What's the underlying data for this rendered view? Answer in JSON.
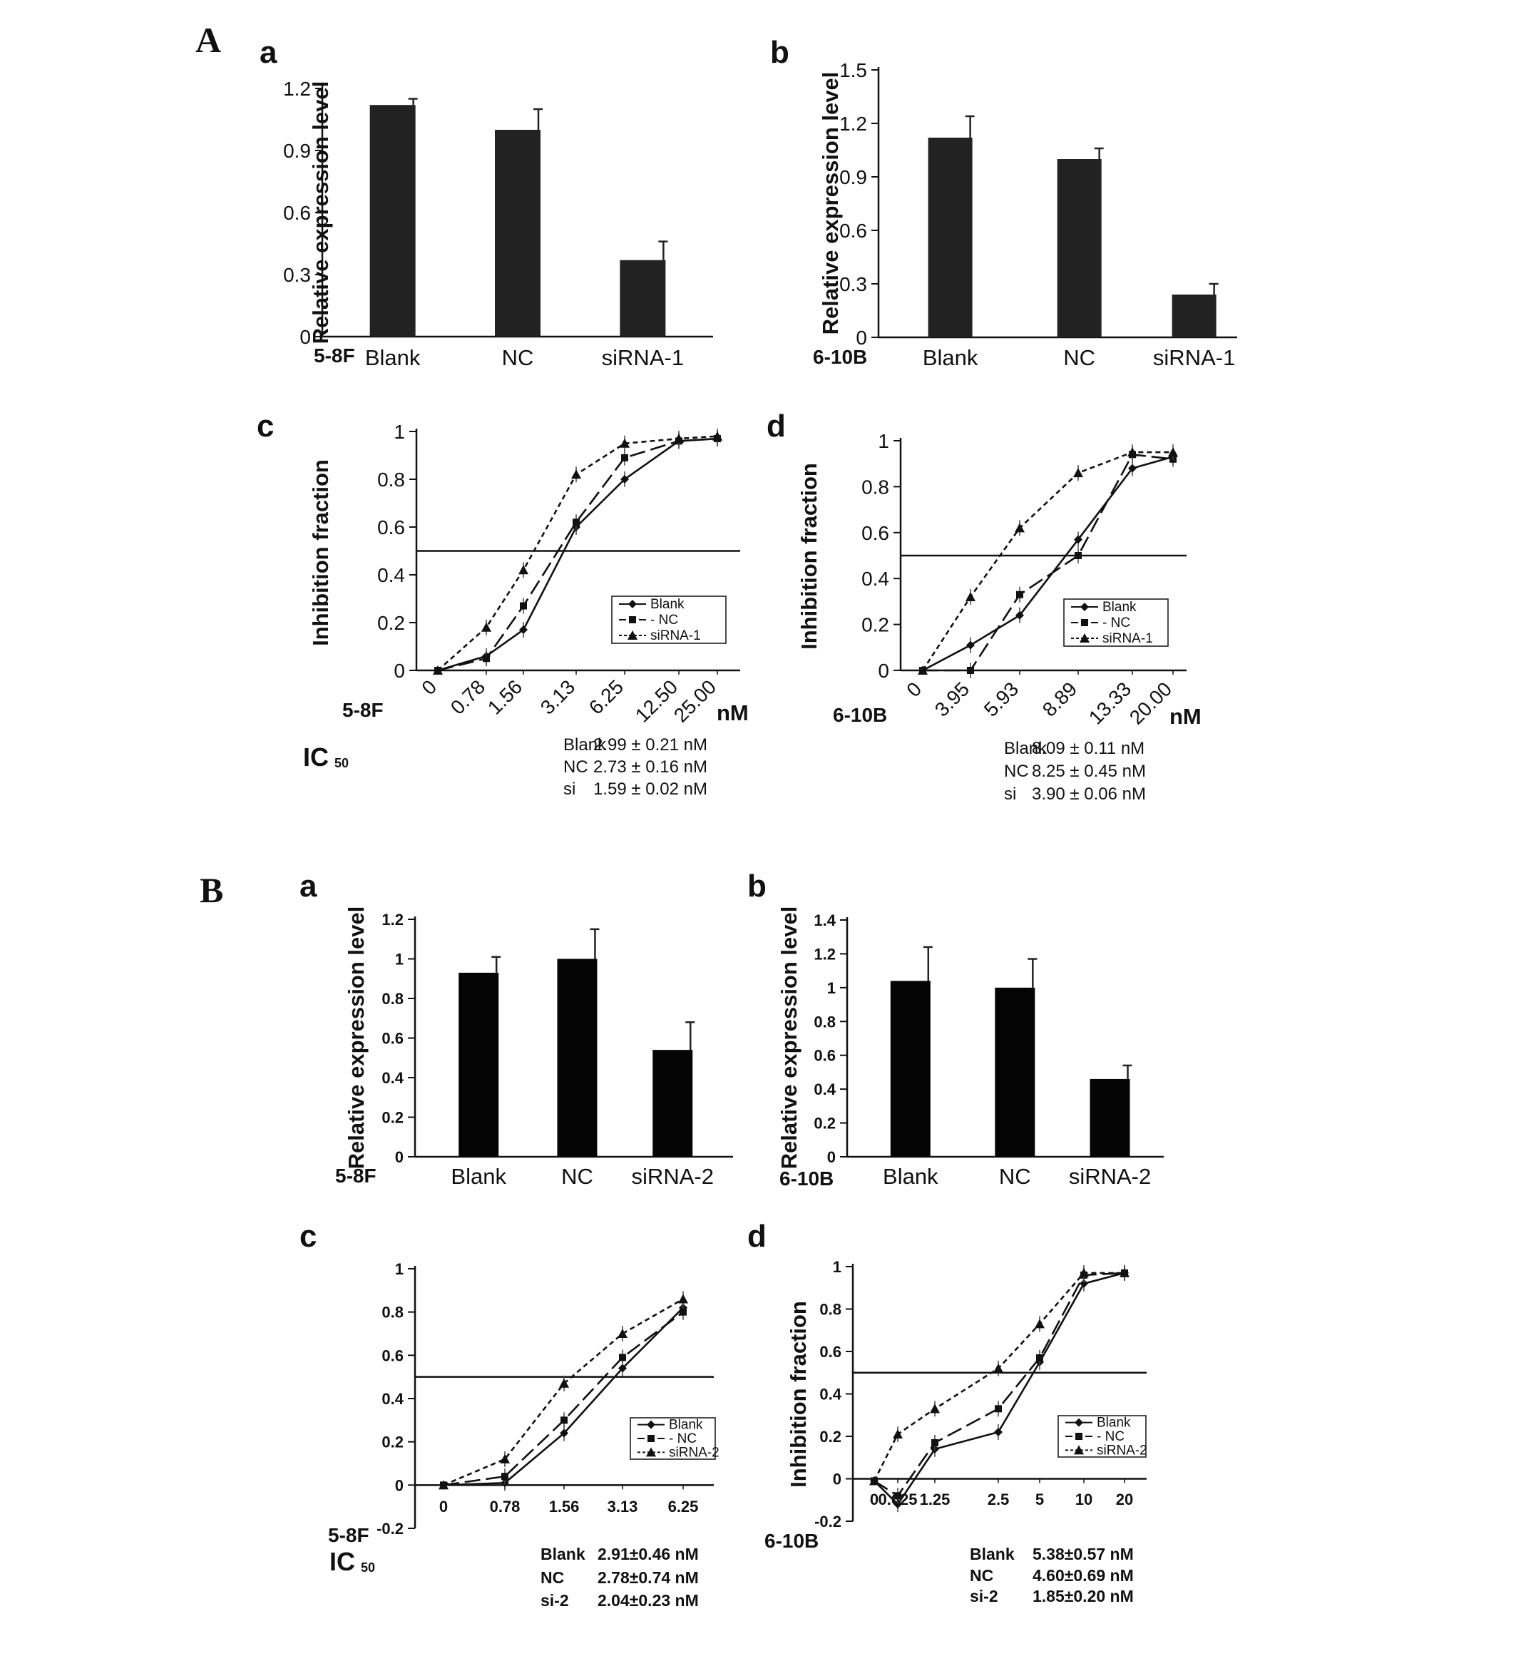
{
  "sections": [
    {
      "label": "A"
    },
    {
      "label": "B"
    }
  ],
  "chart_data": [
    {
      "id": "Aa",
      "type": "bar",
      "panel_label": "a",
      "cell_line": "5-8F",
      "title": "",
      "xlabel": "",
      "ylabel": "Relative expression level",
      "categories": [
        "Blank",
        "NC",
        "siRNA-1"
      ],
      "values": [
        1.12,
        1.0,
        0.37
      ],
      "errors": [
        0.03,
        0.1,
        0.09
      ],
      "ylim": [
        0,
        1.2
      ],
      "yticks": [
        "0",
        "0.3",
        "0.6",
        "0.9",
        "1.2"
      ],
      "ytick_values": [
        0,
        0.3,
        0.6,
        0.9,
        1.2
      ]
    },
    {
      "id": "Ab",
      "type": "bar",
      "panel_label": "b",
      "cell_line": "6-10B",
      "title": "",
      "xlabel": "",
      "ylabel": "Relative expression level",
      "categories": [
        "Blank",
        "NC",
        "siRNA-1"
      ],
      "values": [
        1.12,
        1.0,
        0.24
      ],
      "errors": [
        0.12,
        0.06,
        0.06
      ],
      "ylim": [
        0,
        1.5
      ],
      "yticks": [
        "0",
        "0.3",
        "0.6",
        "0.9",
        "1.2",
        "1.5"
      ],
      "ytick_values": [
        0,
        0.3,
        0.6,
        0.9,
        1.2,
        1.5
      ]
    },
    {
      "id": "Ac",
      "type": "line",
      "panel_label": "c",
      "cell_line": "5-8F",
      "title": "",
      "ylabel": "Inhibition fraction",
      "xlabel": "",
      "unit": "nM",
      "x": [
        "0",
        "0.78",
        "1.56",
        "3.13",
        "6.25",
        "12.50",
        "25.00"
      ],
      "ylim": [
        0,
        1
      ],
      "yticks": [
        "0",
        "0.2",
        "0.4",
        "0.6",
        "0.8",
        "1"
      ],
      "ytick_values": [
        0,
        0.2,
        0.4,
        0.6,
        0.8,
        1
      ],
      "threshold": 0.5,
      "legend_position": "bottom-right",
      "series": [
        {
          "name": "Blank",
          "values": [
            0,
            0.06,
            0.17,
            0.6,
            0.8,
            0.96,
            0.97
          ]
        },
        {
          "name": "- NC",
          "values": [
            0,
            0.05,
            0.27,
            0.62,
            0.89,
            0.96,
            0.97
          ]
        },
        {
          "name": "siRNA-1",
          "values": [
            0,
            0.18,
            0.42,
            0.82,
            0.95,
            0.97,
            0.98
          ]
        }
      ],
      "ic50_title": "IC",
      "ic50_subscript": "50",
      "ic50": [
        {
          "label": "Blank",
          "value": "2.99 ± 0.21 nM"
        },
        {
          "label": "NC",
          "value": "2.73 ± 0.16 nM"
        },
        {
          "label": "si",
          "value": "1.59 ± 0.02 nM"
        }
      ]
    },
    {
      "id": "Ad",
      "type": "line",
      "panel_label": "d",
      "cell_line": "6-10B",
      "title": "",
      "ylabel": "Inhibition fraction",
      "xlabel": "",
      "unit": "nM",
      "x": [
        "0",
        "3.95",
        "5.93",
        "8.89",
        "13.33",
        "20.00"
      ],
      "ylim": [
        0,
        1
      ],
      "yticks": [
        "0",
        "0.2",
        "0.4",
        "0.6",
        "0.8",
        "1"
      ],
      "ytick_values": [
        0,
        0.2,
        0.4,
        0.6,
        0.8,
        1
      ],
      "threshold": 0.5,
      "legend_position": "bottom-right",
      "series": [
        {
          "name": "Blank",
          "values": [
            0,
            0.11,
            0.24,
            0.57,
            0.88,
            0.93
          ]
        },
        {
          "name": "- NC",
          "values": [
            0,
            0.0,
            0.33,
            0.5,
            0.94,
            0.92
          ]
        },
        {
          "name": "siRNA-1",
          "values": [
            0,
            0.32,
            0.62,
            0.86,
            0.95,
            0.95
          ]
        }
      ],
      "ic50": [
        {
          "label": "Blank",
          "value": "8.09 ± 0.11 nM"
        },
        {
          "label": "NC",
          "value": "8.25 ± 0.45 nM"
        },
        {
          "label": "si",
          "value": "3.90 ± 0.06 nM"
        }
      ]
    },
    {
      "id": "Ba",
      "type": "bar",
      "panel_label": "a",
      "cell_line": "5-8F",
      "title": "",
      "xlabel": "",
      "ylabel": "Relative expression level",
      "categories": [
        "Blank",
        "NC",
        "siRNA-2"
      ],
      "values": [
        0.93,
        1.0,
        0.54
      ],
      "errors": [
        0.08,
        0.15,
        0.14
      ],
      "ylim": [
        0,
        1.2
      ],
      "yticks": [
        "0",
        "0.2",
        "0.4",
        "0.6",
        "0.8",
        "1",
        "1.2"
      ],
      "ytick_values": [
        0,
        0.2,
        0.4,
        0.6,
        0.8,
        1,
        1.2
      ]
    },
    {
      "id": "Bb",
      "type": "bar",
      "panel_label": "b",
      "cell_line": "6-10B",
      "title": "",
      "xlabel": "",
      "ylabel": "Relative expression level",
      "categories": [
        "Blank",
        "NC",
        "siRNA-2"
      ],
      "values": [
        1.04,
        1.0,
        0.46
      ],
      "errors": [
        0.2,
        0.17,
        0.08
      ],
      "ylim": [
        0,
        1.4
      ],
      "yticks": [
        "0",
        "0.2",
        "0.4",
        "0.6",
        "0.8",
        "1",
        "1.2",
        "1.4"
      ],
      "ytick_values": [
        0,
        0.2,
        0.4,
        0.6,
        0.8,
        1,
        1.2,
        1.4
      ]
    },
    {
      "id": "Bc",
      "type": "line",
      "panel_label": "c",
      "cell_line": "5-8F",
      "title": "",
      "ylabel": "",
      "xlabel": "",
      "x": [
        "0",
        "0.78",
        "1.56",
        "3.13",
        "6.25"
      ],
      "ylim": [
        -0.2,
        1
      ],
      "yticks": [
        "-0.2",
        "0",
        "0.2",
        "0.4",
        "0.6",
        "0.8",
        "1"
      ],
      "ytick_values": [
        -0.2,
        0,
        0.2,
        0.4,
        0.6,
        0.8,
        1
      ],
      "threshold": 0.5,
      "legend_position": "bottom-right",
      "series": [
        {
          "name": "Blank",
          "values": [
            0,
            0.01,
            0.24,
            0.54,
            0.82
          ]
        },
        {
          "name": "- NC",
          "values": [
            0,
            0.04,
            0.3,
            0.59,
            0.8
          ]
        },
        {
          "name": "siRNA-2",
          "values": [
            0,
            0.12,
            0.47,
            0.7,
            0.86
          ]
        }
      ],
      "ic50_title": "IC",
      "ic50_subscript": "50",
      "ic50": [
        {
          "label": "Blank",
          "value": "2.91±0.46 nM"
        },
        {
          "label": "NC",
          "value": "2.78±0.74 nM"
        },
        {
          "label": "si-2",
          "value": "2.04±0.23 nM"
        }
      ]
    },
    {
      "id": "Bd",
      "type": "line",
      "panel_label": "d",
      "cell_line": "6-10B",
      "title": "",
      "ylabel": "Inhibition fraction",
      "xlabel": "",
      "x": [
        "0",
        "0.625",
        "1.25",
        "2.5",
        "5",
        "10",
        "20"
      ],
      "ylim": [
        -0.2,
        1
      ],
      "yticks": [
        "-0.2",
        "0",
        "0.2",
        "0.4",
        "0.6",
        "0.8",
        "1"
      ],
      "ytick_values": [
        -0.2,
        0,
        0.2,
        0.4,
        0.6,
        0.8,
        1
      ],
      "threshold": 0.5,
      "legend_position": "bottom-right",
      "series": [
        {
          "name": "Blank",
          "values": [
            -0.01,
            -0.12,
            0.14,
            0.22,
            0.55,
            0.92,
            0.97
          ]
        },
        {
          "name": "- NC",
          "values": [
            -0.01,
            -0.08,
            0.17,
            0.33,
            0.57,
            0.96,
            0.97
          ]
        },
        {
          "name": "siRNA-2",
          "values": [
            -0.01,
            0.21,
            0.33,
            0.52,
            0.73,
            0.97,
            0.97
          ]
        }
      ],
      "ic50": [
        {
          "label": "Blank",
          "value": "5.38±0.57 nM"
        },
        {
          "label": "NC",
          "value": "4.60±0.69 nM"
        },
        {
          "label": "si-2",
          "value": "1.85±0.20 nM"
        }
      ]
    }
  ]
}
